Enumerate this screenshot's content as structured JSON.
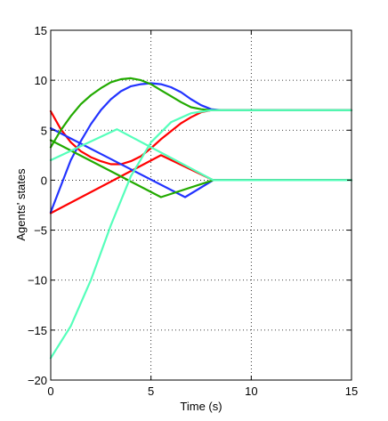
{
  "chart_data": {
    "type": "line",
    "xlabel": "Time (s)",
    "ylabel": "Agents' states",
    "xlim": [
      0,
      15
    ],
    "ylim": [
      -20,
      15
    ],
    "xticks": [
      0,
      5,
      10,
      15
    ],
    "yticks": [
      -20,
      -15,
      -10,
      -5,
      0,
      5,
      10,
      15
    ],
    "x_tick_labels": [
      "0",
      "5",
      "10",
      "15"
    ],
    "y_tick_labels": [
      "−20",
      "−15",
      "−10",
      "−5",
      "0",
      "5",
      "10",
      "15"
    ],
    "grid": "dotted",
    "series": [
      {
        "color": "#ff0000",
        "x": [
          0,
          0.5,
          1,
          1.5,
          2,
          2.5,
          3,
          3.5,
          4,
          4.5,
          5,
          5.5,
          6,
          6.5,
          7,
          7.5,
          8,
          8.5,
          9,
          15
        ],
        "y": [
          6.9,
          5.1,
          3.8,
          2.9,
          2.3,
          1.9,
          1.6,
          1.6,
          1.9,
          2.4,
          3.2,
          4.1,
          4.9,
          5.7,
          6.3,
          6.8,
          7.0,
          7.0,
          7.0,
          7.0
        ]
      },
      {
        "color": "#ff0000",
        "x": [
          0,
          5.5,
          8.1,
          15
        ],
        "y": [
          -3.3,
          2.5,
          0.0,
          0.0
        ]
      },
      {
        "color": "#2233ff",
        "x": [
          0,
          1,
          1.5,
          2,
          2.5,
          3,
          3.5,
          4,
          4.5,
          5,
          5.5,
          6,
          6.5,
          7,
          7.5,
          8,
          8.5,
          9,
          15
        ],
        "y": [
          -3.2,
          2.0,
          3.9,
          5.6,
          7.0,
          8.1,
          8.9,
          9.4,
          9.6,
          9.7,
          9.6,
          9.3,
          8.8,
          8.1,
          7.5,
          7.1,
          7.0,
          7.0,
          7.0
        ]
      },
      {
        "color": "#2233ff",
        "x": [
          0,
          6.7,
          8.1,
          15
        ],
        "y": [
          5.2,
          -1.7,
          0.0,
          0.0
        ]
      },
      {
        "color": "#22aa00",
        "x": [
          0,
          0.5,
          1,
          1.5,
          2,
          2.5,
          3,
          3.5,
          4,
          4.5,
          5,
          5.5,
          6,
          6.5,
          7,
          7.5,
          8,
          8.5,
          15
        ],
        "y": [
          3.3,
          5.0,
          6.4,
          7.6,
          8.5,
          9.2,
          9.8,
          10.1,
          10.2,
          10.0,
          9.6,
          9.0,
          8.4,
          7.8,
          7.3,
          7.1,
          7.0,
          7.0,
          7.0
        ]
      },
      {
        "color": "#22aa00",
        "x": [
          0,
          5.5,
          8.1,
          15
        ],
        "y": [
          4.0,
          -1.7,
          0.0,
          0.0
        ]
      },
      {
        "color": "#55ffbb",
        "x": [
          0,
          1,
          2,
          3,
          4,
          5,
          6,
          7,
          8,
          8.5,
          9,
          15
        ],
        "y": [
          -17.8,
          -14.6,
          -10.0,
          -4.5,
          0.4,
          3.8,
          5.8,
          6.7,
          7.0,
          7.0,
          7.0,
          7.0
        ]
      },
      {
        "color": "#55ffbb",
        "x": [
          0,
          3.3,
          8.1,
          15
        ],
        "y": [
          2.0,
          5.1,
          0.0,
          0.0
        ]
      }
    ]
  }
}
